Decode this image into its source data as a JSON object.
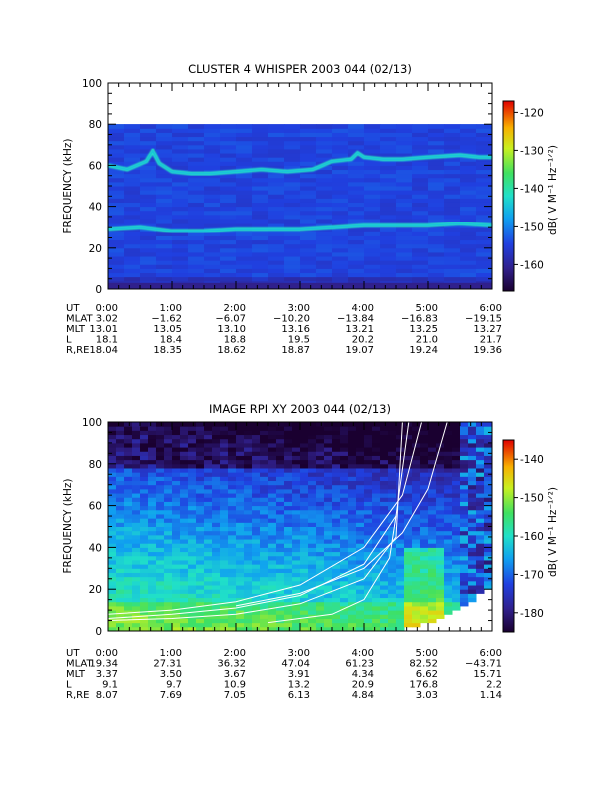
{
  "chart_data": [
    {
      "type": "heatmap",
      "title": "CLUSTER 4 WHISPER 2003 044 (02/13)",
      "ylabel": "FREQUENCY (kHz)",
      "ylim": [
        0,
        100
      ],
      "yticks": [
        "0",
        "20",
        "40",
        "60",
        "80",
        "100"
      ],
      "data_range_khz": [
        0,
        80
      ],
      "colorbar": {
        "label": "dB( V M⁻¹ Hz⁻¹ᐟ²)",
        "range": [
          -167,
          -117
        ],
        "ticks": [
          "-120",
          "-130",
          "-140",
          "-150",
          "-160"
        ]
      },
      "traces": [
        {
          "name": "upper emission band",
          "x_hours": [
            0,
            0.3,
            0.6,
            0.7,
            0.8,
            1.0,
            1.3,
            1.6,
            2.0,
            2.4,
            2.8,
            3.2,
            3.5,
            3.8,
            3.9,
            4.0,
            4.3,
            4.6,
            5.0,
            5.5,
            5.8,
            6.0
          ],
          "y_khz": [
            60,
            58,
            62,
            67,
            61,
            57,
            56,
            56,
            57,
            58,
            57,
            58,
            62,
            63,
            66,
            64,
            63,
            63,
            64,
            65,
            64,
            64
          ]
        },
        {
          "name": "lower emission band",
          "x_hours": [
            0,
            0.5,
            1.0,
            1.5,
            2.0,
            2.5,
            3.0,
            3.5,
            4.0,
            4.5,
            5.0,
            5.5,
            6.0
          ],
          "y_khz": [
            29,
            30,
            28,
            28,
            29,
            29,
            29,
            30,
            31,
            31,
            31,
            32,
            31
          ]
        }
      ],
      "table": {
        "row_labels": [
          "UT",
          "MLAT",
          "MLT",
          "L",
          "R,RE"
        ],
        "columns": [
          [
            "0:00",
            "3.02",
            "13.01",
            "18.1",
            "18.04"
          ],
          [
            "1:00",
            "−1.62",
            "13.05",
            "18.4",
            "18.35"
          ],
          [
            "2:00",
            "−6.07",
            "13.10",
            "18.8",
            "18.62"
          ],
          [
            "3:00",
            "−10.20",
            "13.16",
            "19.5",
            "18.87"
          ],
          [
            "4:00",
            "−13.84",
            "13.21",
            "20.2",
            "19.07"
          ],
          [
            "5:00",
            "−16.83",
            "13.25",
            "21.0",
            "19.24"
          ],
          [
            "6:00",
            "−19.15",
            "13.27",
            "21.7",
            "19.36"
          ]
        ]
      }
    },
    {
      "type": "heatmap",
      "title": "IMAGE RPI XY 2003 044 (02/13)",
      "ylabel": "FREQUENCY (kHz)",
      "ylim": [
        0,
        100
      ],
      "yticks": [
        "0",
        "20",
        "40",
        "60",
        "80",
        "100"
      ],
      "colorbar": {
        "label": "dB( V M⁻¹ Hz⁻¹ᐟ²)",
        "range": [
          -185,
          -135
        ],
        "ticks": [
          "-140",
          "-150",
          "-160",
          "-170",
          "-180"
        ]
      },
      "curves_hours_khz": [
        [
          [
            2.0,
            12
          ],
          [
            3.0,
            18
          ],
          [
            4.0,
            30
          ],
          [
            4.6,
            47
          ],
          [
            5.0,
            68
          ],
          [
            5.3,
            100
          ]
        ],
        [
          [
            0.0,
            8
          ],
          [
            1.0,
            10
          ],
          [
            2.0,
            14
          ],
          [
            3.0,
            22
          ],
          [
            4.0,
            40
          ],
          [
            4.6,
            65
          ],
          [
            4.9,
            100
          ]
        ],
        [
          [
            0.0,
            6
          ],
          [
            1.0,
            8
          ],
          [
            2.0,
            11
          ],
          [
            3.0,
            17
          ],
          [
            4.0,
            32
          ],
          [
            4.5,
            55
          ],
          [
            4.7,
            100
          ]
        ],
        [
          [
            0.0,
            5
          ],
          [
            1.0,
            6
          ],
          [
            2.0,
            8
          ],
          [
            3.0,
            13
          ],
          [
            4.0,
            25
          ],
          [
            4.5,
            45
          ],
          [
            4.6,
            100
          ]
        ],
        [
          [
            2.5,
            4
          ],
          [
            3.5,
            8
          ],
          [
            4.0,
            15
          ],
          [
            4.4,
            35
          ],
          [
            4.5,
            55
          ]
        ]
      ],
      "table": {
        "row_labels": [
          "UT",
          "MLAT",
          "MLT",
          "L",
          "R,RE"
        ],
        "columns": [
          [
            "0:00",
            "19.34",
            "3.37",
            "9.1",
            "8.07"
          ],
          [
            "1:00",
            "27.31",
            "3.50",
            "9.7",
            "7.69"
          ],
          [
            "2:00",
            "36.32",
            "3.67",
            "10.9",
            "7.05"
          ],
          [
            "3:00",
            "47.04",
            "3.91",
            "13.2",
            "6.13"
          ],
          [
            "4:00",
            "61.23",
            "4.34",
            "20.9",
            "4.84"
          ],
          [
            "5:00",
            "82.52",
            "6.62",
            "176.8",
            "3.03"
          ],
          [
            "6:00",
            "−43.71",
            "15.71",
            "2.2",
            "1.14"
          ]
        ]
      }
    }
  ]
}
